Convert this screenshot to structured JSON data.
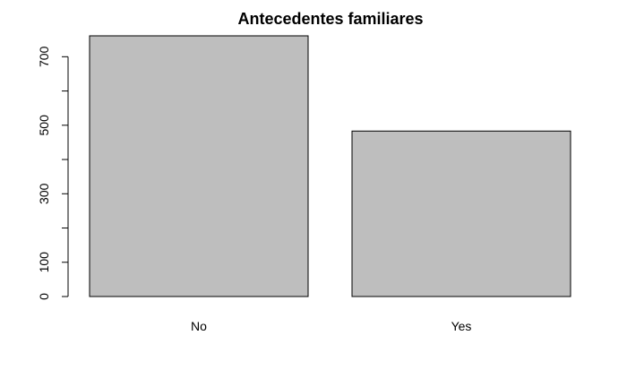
{
  "chart_data": {
    "type": "bar",
    "title": "Antecedentes familiares",
    "xlabel": "",
    "ylabel": "",
    "categories": [
      "No",
      "Yes"
    ],
    "values": [
      761,
      483
    ],
    "ylim": [
      0,
      761
    ],
    "yticks": [
      0,
      100,
      200,
      300,
      400,
      500,
      600,
      700
    ],
    "ytick_labels": [
      "0",
      "100",
      "",
      "300",
      "",
      "500",
      "",
      "700"
    ],
    "grid": false,
    "legend": "none",
    "bar_color": "#bebebe"
  }
}
